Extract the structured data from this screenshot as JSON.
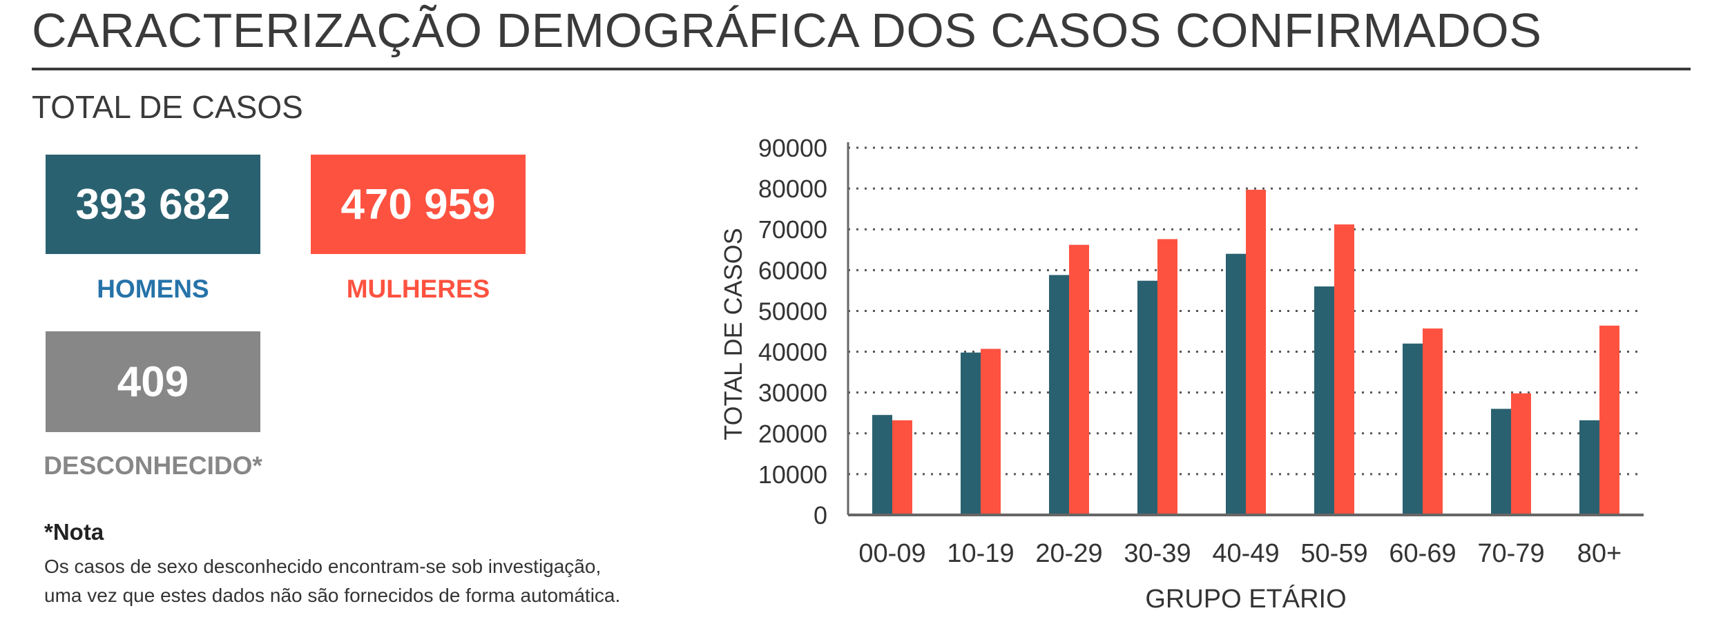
{
  "page": {
    "title": "CARACTERIZAÇÃO DEMOGRÁFICA DOS CASOS CONFIRMADOS",
    "section_title": "TOTAL DE CASOS"
  },
  "cards": {
    "men": {
      "value": "393 682",
      "label": "HOMENS",
      "color": "#2a6170",
      "label_color": "#2673a9"
    },
    "women": {
      "value": "470 959",
      "label": "MULHERES",
      "color": "#fe5240",
      "label_color": "#fe5240"
    },
    "unknown": {
      "value": "409",
      "label": "DESCONHECIDO*",
      "color": "#878787",
      "label_color": "#878787"
    }
  },
  "note": {
    "title": "*Nota",
    "line1": "Os casos de sexo desconhecido encontram-se sob investigação,",
    "line2": "uma vez que estes dados não são fornecidos de forma automática."
  },
  "chart_data": {
    "type": "bar",
    "xlabel": "GRUPO ETÁRIO",
    "ylabel": "TOTAL DE CASOS",
    "categories": [
      "00-09",
      "10-19",
      "20-29",
      "30-39",
      "40-49",
      "50-59",
      "60-69",
      "70-79",
      "80+"
    ],
    "series": [
      {
        "color": "#2a6170",
        "values": [
          24500,
          39800,
          58800,
          57400,
          64000,
          56000,
          42000,
          26000,
          23200
        ]
      },
      {
        "color": "#fe5240",
        "values": [
          23200,
          40700,
          66200,
          67600,
          79700,
          71200,
          45700,
          29800,
          46400
        ]
      }
    ],
    "ylim": [
      0,
      90000
    ],
    "yticks": [
      0,
      10000,
      20000,
      30000,
      40000,
      50000,
      60000,
      70000,
      80000,
      90000
    ],
    "ytick_labels": [
      "0",
      "10000",
      "20000",
      "30000",
      "40000",
      "50000",
      "60000",
      "70000",
      "80000",
      "90000"
    ],
    "grid": true,
    "grid_style": "dotted"
  }
}
